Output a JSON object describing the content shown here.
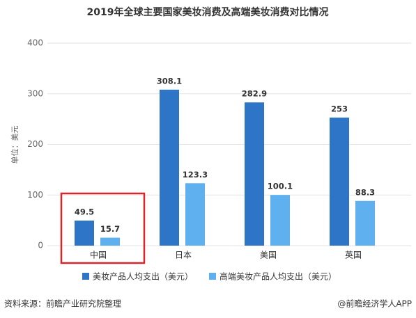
{
  "chart_data": {
    "type": "bar",
    "title": "2019年全球主要国家美妆消费及高端美妆消费对比情况",
    "y_label": "单位：美元",
    "categories": [
      "中国",
      "日本",
      "美国",
      "英国"
    ],
    "series": [
      {
        "name": "美妆产品人均支出（美元）",
        "color": "#2e75c8",
        "values": [
          49.5,
          308.1,
          282.9,
          253
        ]
      },
      {
        "name": "高端美妆产品人均支出（美元）",
        "color": "#5fb0ee",
        "values": [
          15.7,
          123.3,
          100.1,
          88.3
        ]
      }
    ],
    "ylim": [
      0,
      400
    ],
    "yticks": [
      0,
      100,
      200,
      300,
      400
    ],
    "grid": true,
    "source": "资料来源：前瞻产业研究院整理",
    "credit": "@前瞻经济学人APP"
  }
}
